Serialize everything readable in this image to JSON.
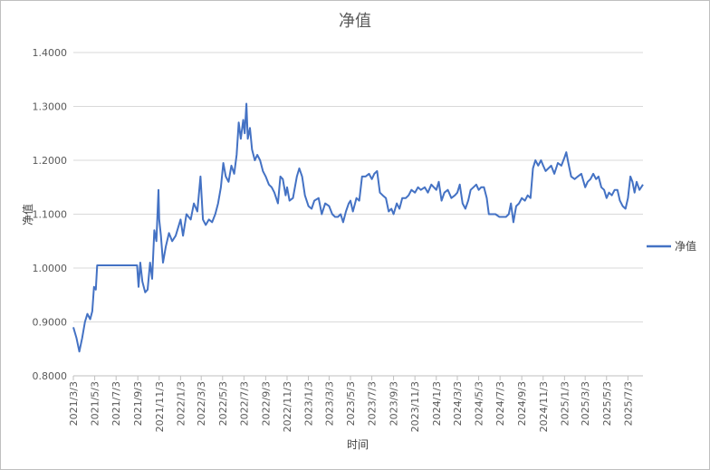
{
  "chart_data": {
    "type": "line",
    "title": "净值",
    "xlabel": "时间",
    "ylabel": "净值",
    "ylim": [
      0.8,
      1.4
    ],
    "y_ticks": [
      "0.8000",
      "0.9000",
      "1.0000",
      "1.1000",
      "1.2000",
      "1.3000",
      "1.4000"
    ],
    "x_ticks": [
      "2021/3/3",
      "2021/5/3",
      "2021/7/3",
      "2021/9/3",
      "2021/11/3",
      "2022/1/3",
      "2022/3/3",
      "2022/5/3",
      "2022/7/3",
      "2022/9/3",
      "2022/11/3",
      "2023/1/3",
      "2023/3/3",
      "2023/5/3",
      "2023/7/3",
      "2023/9/3",
      "2023/11/3",
      "2024/1/3",
      "2024/3/3",
      "2024/5/3",
      "2024/7/3",
      "2024/9/3",
      "2024/11/3",
      "2025/1/3",
      "2025/3/3",
      "2025/5/3",
      "2025/7/3"
    ],
    "x_end": "2025/8/15",
    "grid": "horizontal",
    "legend_position": "right",
    "series": [
      {
        "name": "净值",
        "color": "#4472C4",
        "points": [
          [
            "2021/3/3",
            0.89
          ],
          [
            "2021/3/12",
            0.87
          ],
          [
            "2021/3/20",
            0.845
          ],
          [
            "2021/3/28",
            0.87
          ],
          [
            "2021/4/5",
            0.9
          ],
          [
            "2021/4/12",
            0.915
          ],
          [
            "2021/4/20",
            0.905
          ],
          [
            "2021/4/26",
            0.92
          ],
          [
            "2021/5/1",
            0.965
          ],
          [
            "2021/5/6",
            0.96
          ],
          [
            "2021/5/10",
            1.005
          ],
          [
            "2021/6/1",
            1.005
          ],
          [
            "2021/7/1",
            1.005
          ],
          [
            "2021/8/1",
            1.005
          ],
          [
            "2021/9/1",
            1.005
          ],
          [
            "2021/9/5",
            0.965
          ],
          [
            "2021/9/10",
            1.01
          ],
          [
            "2021/9/16",
            0.975
          ],
          [
            "2021/9/24",
            0.955
          ],
          [
            "2021/10/1",
            0.96
          ],
          [
            "2021/10/8",
            1.01
          ],
          [
            "2021/10/14",
            0.98
          ],
          [
            "2021/10/20",
            1.07
          ],
          [
            "2021/10/26",
            1.05
          ],
          [
            "2021/11/1",
            1.145
          ],
          [
            "2021/11/3",
            1.09
          ],
          [
            "2021/11/8",
            1.06
          ],
          [
            "2021/11/14",
            1.01
          ],
          [
            "2021/11/22",
            1.04
          ],
          [
            "2021/12/1",
            1.065
          ],
          [
            "2021/12/10",
            1.05
          ],
          [
            "2021/12/20",
            1.06
          ],
          [
            "2022/1/3",
            1.09
          ],
          [
            "2022/1/10",
            1.06
          ],
          [
            "2022/1/20",
            1.1
          ],
          [
            "2022/2/1",
            1.09
          ],
          [
            "2022/2/10",
            1.12
          ],
          [
            "2022/2/20",
            1.105
          ],
          [
            "2022/3/1",
            1.17
          ],
          [
            "2022/3/8",
            1.09
          ],
          [
            "2022/3/16",
            1.08
          ],
          [
            "2022/3/25",
            1.09
          ],
          [
            "2022/4/3",
            1.085
          ],
          [
            "2022/4/12",
            1.1
          ],
          [
            "2022/4/20",
            1.12
          ],
          [
            "2022/4/28",
            1.15
          ],
          [
            "2022/5/5",
            1.195
          ],
          [
            "2022/5/12",
            1.17
          ],
          [
            "2022/5/20",
            1.16
          ],
          [
            "2022/5/28",
            1.19
          ],
          [
            "2022/6/5",
            1.175
          ],
          [
            "2022/6/12",
            1.21
          ],
          [
            "2022/6/18",
            1.27
          ],
          [
            "2022/6/24",
            1.24
          ],
          [
            "2022/7/1",
            1.275
          ],
          [
            "2022/7/5",
            1.25
          ],
          [
            "2022/7/10",
            1.305
          ],
          [
            "2022/7/14",
            1.24
          ],
          [
            "2022/7/20",
            1.26
          ],
          [
            "2022/7/26",
            1.22
          ],
          [
            "2022/8/3",
            1.2
          ],
          [
            "2022/8/10",
            1.21
          ],
          [
            "2022/8/18",
            1.2
          ],
          [
            "2022/8/26",
            1.18
          ],
          [
            "2022/9/3",
            1.17
          ],
          [
            "2022/9/12",
            1.155
          ],
          [
            "2022/9/20",
            1.15
          ],
          [
            "2022/9/28",
            1.14
          ],
          [
            "2022/10/8",
            1.12
          ],
          [
            "2022/10/15",
            1.17
          ],
          [
            "2022/10/22",
            1.165
          ],
          [
            "2022/10/30",
            1.135
          ],
          [
            "2022/11/3",
            1.15
          ],
          [
            "2022/11/10",
            1.125
          ],
          [
            "2022/11/20",
            1.13
          ],
          [
            "2022/12/1",
            1.17
          ],
          [
            "2022/12/8",
            1.185
          ],
          [
            "2022/12/16",
            1.17
          ],
          [
            "2022/12/24",
            1.135
          ],
          [
            "2023/1/3",
            1.115
          ],
          [
            "2023/1/12",
            1.11
          ],
          [
            "2023/1/20",
            1.125
          ],
          [
            "2023/2/1",
            1.13
          ],
          [
            "2023/2/10",
            1.1
          ],
          [
            "2023/2/20",
            1.12
          ],
          [
            "2023/3/3",
            1.115
          ],
          [
            "2023/3/12",
            1.1
          ],
          [
            "2023/3/20",
            1.095
          ],
          [
            "2023/3/28",
            1.095
          ],
          [
            "2023/4/5",
            1.1
          ],
          [
            "2023/4/12",
            1.085
          ],
          [
            "2023/4/20",
            1.105
          ],
          [
            "2023/4/28",
            1.12
          ],
          [
            "2023/5/3",
            1.125
          ],
          [
            "2023/5/10",
            1.105
          ],
          [
            "2023/5/20",
            1.13
          ],
          [
            "2023/5/28",
            1.125
          ],
          [
            "2023/6/5",
            1.17
          ],
          [
            "2023/6/15",
            1.17
          ],
          [
            "2023/6/25",
            1.175
          ],
          [
            "2023/7/3",
            1.165
          ],
          [
            "2023/7/10",
            1.175
          ],
          [
            "2023/7/18",
            1.18
          ],
          [
            "2023/7/26",
            1.14
          ],
          [
            "2023/8/3",
            1.135
          ],
          [
            "2023/8/12",
            1.13
          ],
          [
            "2023/8/20",
            1.105
          ],
          [
            "2023/8/28",
            1.11
          ],
          [
            "2023/9/3",
            1.1
          ],
          [
            "2023/9/12",
            1.12
          ],
          [
            "2023/9/20",
            1.11
          ],
          [
            "2023/9/28",
            1.13
          ],
          [
            "2023/10/8",
            1.13
          ],
          [
            "2023/10/16",
            1.135
          ],
          [
            "2023/10/24",
            1.145
          ],
          [
            "2023/11/3",
            1.14
          ],
          [
            "2023/11/12",
            1.15
          ],
          [
            "2023/11/20",
            1.145
          ],
          [
            "2023/12/1",
            1.15
          ],
          [
            "2023/12/10",
            1.14
          ],
          [
            "2023/12/20",
            1.155
          ],
          [
            "2024/1/3",
            1.145
          ],
          [
            "2024/1/10",
            1.16
          ],
          [
            "2024/1/18",
            1.125
          ],
          [
            "2024/1/26",
            1.14
          ],
          [
            "2024/2/5",
            1.145
          ],
          [
            "2024/2/15",
            1.13
          ],
          [
            "2024/2/25",
            1.135
          ],
          [
            "2024/3/3",
            1.14
          ],
          [
            "2024/3/10",
            1.155
          ],
          [
            "2024/3/18",
            1.12
          ],
          [
            "2024/3/26",
            1.11
          ],
          [
            "2024/4/3",
            1.125
          ],
          [
            "2024/4/10",
            1.145
          ],
          [
            "2024/4/18",
            1.15
          ],
          [
            "2024/4/26",
            1.155
          ],
          [
            "2024/5/3",
            1.145
          ],
          [
            "2024/5/10",
            1.15
          ],
          [
            "2024/5/18",
            1.15
          ],
          [
            "2024/5/26",
            1.13
          ],
          [
            "2024/6/1",
            1.1
          ],
          [
            "2024/6/10",
            1.1
          ],
          [
            "2024/6/20",
            1.1
          ],
          [
            "2024/7/1",
            1.095
          ],
          [
            "2024/7/10",
            1.095
          ],
          [
            "2024/7/20",
            1.095
          ],
          [
            "2024/7/28",
            1.1
          ],
          [
            "2024/8/3",
            1.12
          ],
          [
            "2024/8/10",
            1.085
          ],
          [
            "2024/8/18",
            1.115
          ],
          [
            "2024/8/26",
            1.12
          ],
          [
            "2024/9/3",
            1.13
          ],
          [
            "2024/9/12",
            1.125
          ],
          [
            "2024/9/20",
            1.135
          ],
          [
            "2024/9/28",
            1.13
          ],
          [
            "2024/10/5",
            1.185
          ],
          [
            "2024/10/12",
            1.2
          ],
          [
            "2024/10/20",
            1.19
          ],
          [
            "2024/10/28",
            1.2
          ],
          [
            "2024/11/3",
            1.19
          ],
          [
            "2024/11/10",
            1.18
          ],
          [
            "2024/11/18",
            1.185
          ],
          [
            "2024/11/26",
            1.19
          ],
          [
            "2024/12/5",
            1.175
          ],
          [
            "2024/12/15",
            1.195
          ],
          [
            "2024/12/25",
            1.19
          ],
          [
            "2025/1/3",
            1.205
          ],
          [
            "2025/1/8",
            1.215
          ],
          [
            "2025/1/14",
            1.195
          ],
          [
            "2025/1/22",
            1.17
          ],
          [
            "2025/2/1",
            1.165
          ],
          [
            "2025/2/10",
            1.17
          ],
          [
            "2025/2/20",
            1.175
          ],
          [
            "2025/3/3",
            1.15
          ],
          [
            "2025/3/10",
            1.16
          ],
          [
            "2025/3/18",
            1.165
          ],
          [
            "2025/3/26",
            1.175
          ],
          [
            "2025/4/3",
            1.165
          ],
          [
            "2025/4/10",
            1.17
          ],
          [
            "2025/4/18",
            1.15
          ],
          [
            "2025/4/26",
            1.145
          ],
          [
            "2025/5/3",
            1.13
          ],
          [
            "2025/5/10",
            1.14
          ],
          [
            "2025/5/18",
            1.135
          ],
          [
            "2025/5/26",
            1.145
          ],
          [
            "2025/6/3",
            1.145
          ],
          [
            "2025/6/10",
            1.125
          ],
          [
            "2025/6/18",
            1.115
          ],
          [
            "2025/6/26",
            1.11
          ],
          [
            "2025/7/3",
            1.13
          ],
          [
            "2025/7/10",
            1.17
          ],
          [
            "2025/7/16",
            1.16
          ],
          [
            "2025/7/22",
            1.14
          ],
          [
            "2025/7/28",
            1.16
          ],
          [
            "2025/8/5",
            1.145
          ],
          [
            "2025/8/15",
            1.155
          ]
        ]
      }
    ]
  }
}
